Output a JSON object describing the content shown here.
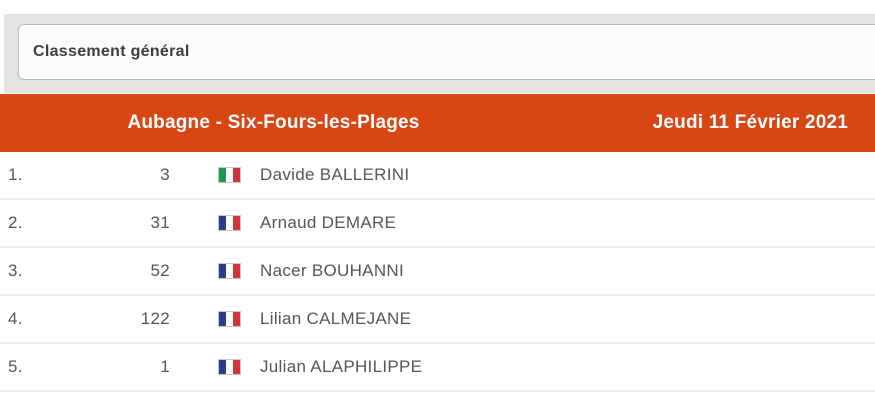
{
  "selector": {
    "label": "Classement général"
  },
  "header": {
    "stage": "Aubagne - Six-Fours-les-Plages",
    "date": "Jeudi 11 Février 2021"
  },
  "table": {
    "rows": [
      {
        "rank": "1.",
        "bib": "3",
        "country": "italy-flag",
        "name": "Davide BALLERINI"
      },
      {
        "rank": "2.",
        "bib": "31",
        "country": "france-flag",
        "name": "Arnaud DEMARE"
      },
      {
        "rank": "3.",
        "bib": "52",
        "country": "france-flag",
        "name": "Nacer BOUHANNI"
      },
      {
        "rank": "4.",
        "bib": "122",
        "country": "france-flag",
        "name": "Lilian CALMEJANE"
      },
      {
        "rank": "5.",
        "bib": "1",
        "country": "france-flag",
        "name": "Julian ALAPHILIPPE"
      }
    ]
  },
  "colors": {
    "accent_orange": "#d84614",
    "strip_gray": "#e5e3e1",
    "row_text": "#54565a",
    "divider": "#ececec"
  }
}
